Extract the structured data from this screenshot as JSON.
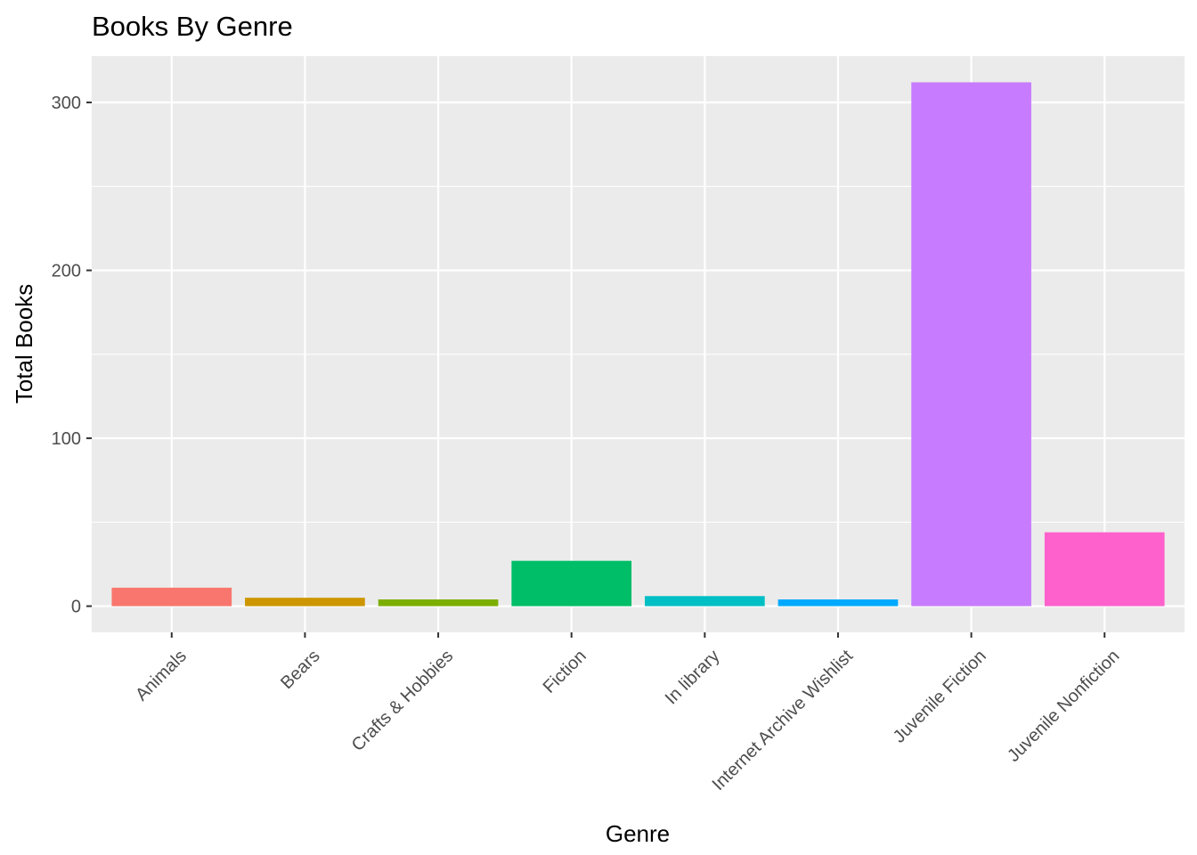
{
  "chart_data": {
    "type": "bar",
    "title": "Books By Genre",
    "xlabel": "Genre",
    "ylabel": "Total Books",
    "categories": [
      "Animals",
      "Bears",
      "Crafts & Hobbies",
      "Fiction",
      "In library",
      "Internet Archive Wishlist",
      "Juvenile Fiction",
      "Juvenile Nonfiction"
    ],
    "values": [
      11,
      5,
      4,
      27,
      6,
      4,
      312,
      44
    ],
    "colors": [
      "#F8766D",
      "#CD9600",
      "#7CAE00",
      "#00BE67",
      "#00BFC4",
      "#00A9FF",
      "#C77CFF",
      "#FF61CC"
    ],
    "ylim": [
      -15.6,
      327.6
    ],
    "y_ticks": [
      0,
      100,
      200,
      300
    ],
    "y_minor_ticks": [
      50,
      150,
      250
    ],
    "grid": true,
    "legend": "none",
    "panel_background": "#EBEBEB",
    "grid_color": "#FFFFFF"
  }
}
